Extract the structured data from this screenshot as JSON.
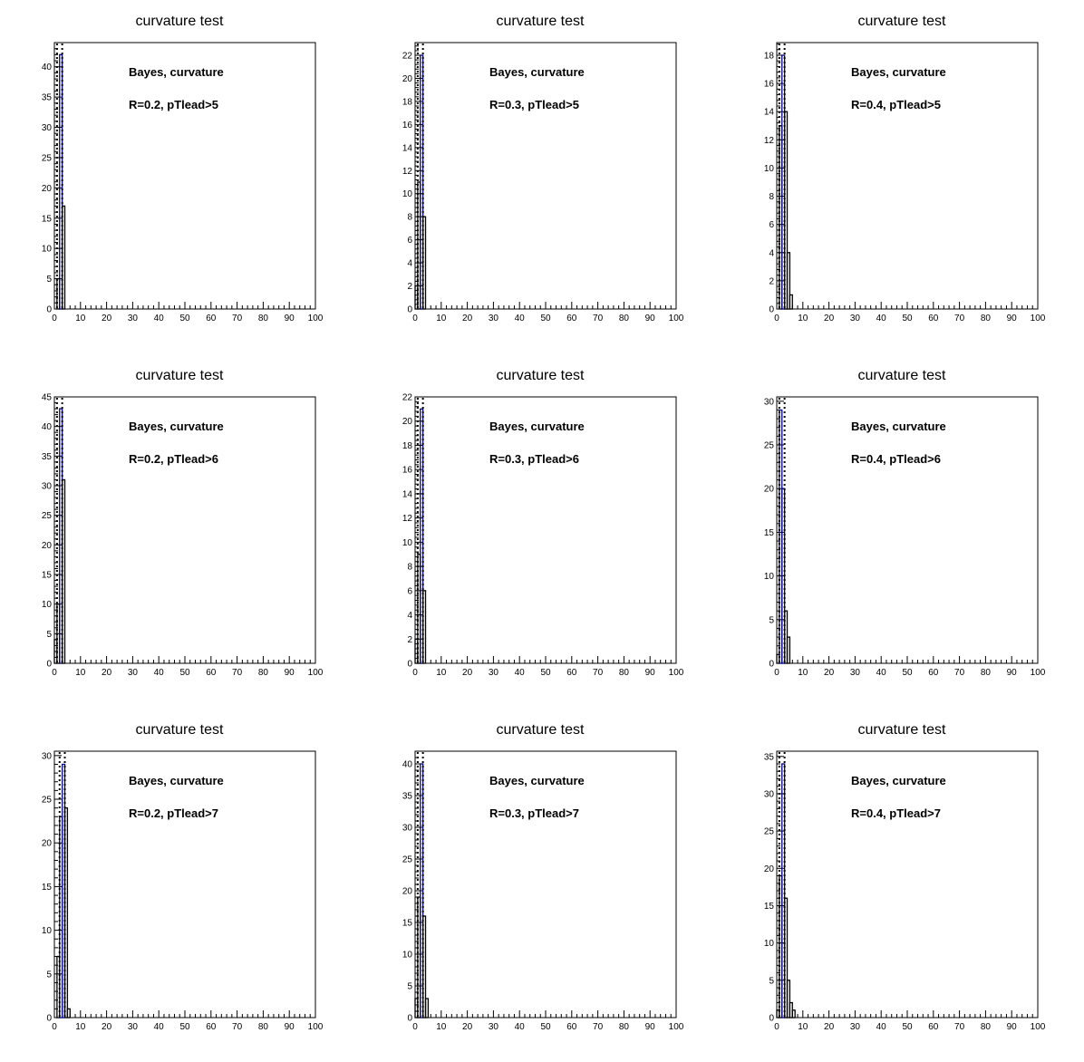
{
  "chart_data": [
    {
      "type": "bar",
      "title": "curvature test",
      "annotation_lines": [
        "Bayes, curvature",
        "R=0.2, pTlead>5"
      ],
      "xlim": [
        0,
        100
      ],
      "ylim": [
        0,
        44
      ],
      "x_ticks": [
        0,
        10,
        20,
        30,
        40,
        50,
        60,
        70,
        80,
        90,
        100
      ],
      "y_ticks": [
        0,
        5,
        10,
        15,
        20,
        25,
        30,
        35,
        40
      ],
      "bin_width": 1,
      "bin_edges": [
        0,
        1,
        2,
        3,
        4
      ],
      "values": [
        0,
        5,
        42,
        17
      ],
      "line_color": "#000080",
      "dotted_lines": [
        1,
        3
      ]
    },
    {
      "type": "bar",
      "title": "curvature test",
      "annotation_lines": [
        "Bayes, curvature",
        "R=0.3, pTlead>5"
      ],
      "xlim": [
        0,
        100
      ],
      "ylim": [
        0,
        23.1
      ],
      "x_ticks": [
        0,
        10,
        20,
        30,
        40,
        50,
        60,
        70,
        80,
        90,
        100
      ],
      "y_ticks": [
        0,
        2,
        4,
        6,
        8,
        10,
        12,
        14,
        16,
        18,
        20,
        22
      ],
      "bin_width": 1,
      "bin_edges": [
        0,
        1,
        2,
        3,
        4
      ],
      "values": [
        2,
        11,
        22,
        8
      ],
      "line_color": "#000080",
      "dotted_lines": [
        1,
        3
      ]
    },
    {
      "type": "bar",
      "title": "curvature test",
      "annotation_lines": [
        "Bayes, curvature",
        "R=0.4, pTlead>5"
      ],
      "xlim": [
        0,
        100
      ],
      "ylim": [
        0,
        18.9
      ],
      "x_ticks": [
        0,
        10,
        20,
        30,
        40,
        50,
        60,
        70,
        80,
        90,
        100
      ],
      "y_ticks": [
        0,
        2,
        4,
        6,
        8,
        10,
        12,
        14,
        16,
        18
      ],
      "bin_width": 1,
      "bin_edges": [
        0,
        1,
        2,
        3,
        4,
        5,
        6,
        7
      ],
      "values": [
        0,
        13,
        18,
        14,
        4,
        1,
        0
      ],
      "line_color": "#000080",
      "dotted_lines": [
        1,
        3
      ]
    },
    {
      "type": "bar",
      "title": "curvature test",
      "annotation_lines": [
        "Bayes, curvature",
        "R=0.2, pTlead>6"
      ],
      "xlim": [
        0,
        100
      ],
      "ylim": [
        0,
        45
      ],
      "x_ticks": [
        0,
        10,
        20,
        30,
        40,
        50,
        60,
        70,
        80,
        90,
        100
      ],
      "y_ticks": [
        0,
        5,
        10,
        15,
        20,
        25,
        30,
        35,
        40,
        45
      ],
      "bin_width": 1,
      "bin_edges": [
        0,
        1,
        2,
        3,
        4
      ],
      "values": [
        4,
        10,
        43,
        31
      ],
      "line_color": "#000080",
      "dotted_lines": [
        1,
        3
      ]
    },
    {
      "type": "bar",
      "title": "curvature test",
      "annotation_lines": [
        "Bayes, curvature",
        "R=0.3, pTlead>6"
      ],
      "xlim": [
        0,
        100
      ],
      "ylim": [
        0,
        22
      ],
      "x_ticks": [
        0,
        10,
        20,
        30,
        40,
        50,
        60,
        70,
        80,
        90,
        100
      ],
      "y_ticks": [
        0,
        2,
        4,
        6,
        8,
        10,
        12,
        14,
        16,
        18,
        20,
        22
      ],
      "bin_width": 1,
      "bin_edges": [
        0,
        1,
        2,
        3,
        4
      ],
      "values": [
        2,
        9,
        21,
        6
      ],
      "line_color": "#000080",
      "dotted_lines": [
        1,
        3
      ]
    },
    {
      "type": "bar",
      "title": "curvature test",
      "annotation_lines": [
        "Bayes, curvature",
        "R=0.4, pTlead>6"
      ],
      "xlim": [
        0,
        100
      ],
      "ylim": [
        0,
        30.5
      ],
      "x_ticks": [
        0,
        10,
        20,
        30,
        40,
        50,
        60,
        70,
        80,
        90,
        100
      ],
      "y_ticks": [
        0,
        5,
        10,
        15,
        20,
        25,
        30
      ],
      "bin_width": 1,
      "bin_edges": [
        0,
        1,
        2,
        3,
        4,
        5,
        6
      ],
      "values": [
        1,
        29,
        20,
        6,
        3,
        0
      ],
      "line_color": "#000080",
      "dotted_lines": [
        1,
        3
      ]
    },
    {
      "type": "bar",
      "title": "curvature test",
      "annotation_lines": [
        "Bayes, curvature",
        "R=0.2, pTlead>7"
      ],
      "xlim": [
        0,
        100
      ],
      "ylim": [
        0,
        30.5
      ],
      "x_ticks": [
        0,
        10,
        20,
        30,
        40,
        50,
        60,
        70,
        80,
        90,
        100
      ],
      "y_ticks": [
        0,
        5,
        10,
        15,
        20,
        25,
        30
      ],
      "bin_width": 1,
      "bin_edges": [
        0,
        1,
        2,
        3,
        4,
        5,
        6
      ],
      "values": [
        0,
        7,
        23,
        29,
        24,
        1
      ],
      "line_color": "#000080",
      "dotted_lines": [
        2,
        4
      ]
    },
    {
      "type": "bar",
      "title": "curvature test",
      "annotation_lines": [
        "Bayes, curvature",
        "R=0.3, pTlead>7"
      ],
      "xlim": [
        0,
        100
      ],
      "ylim": [
        0,
        42
      ],
      "x_ticks": [
        0,
        10,
        20,
        30,
        40,
        50,
        60,
        70,
        80,
        90,
        100
      ],
      "y_ticks": [
        0,
        5,
        10,
        15,
        20,
        25,
        30,
        35,
        40
      ],
      "bin_width": 1,
      "bin_edges": [
        0,
        1,
        2,
        3,
        4,
        5
      ],
      "values": [
        3,
        19,
        40,
        16,
        3
      ],
      "line_color": "#000080",
      "dotted_lines": [
        1,
        3
      ]
    },
    {
      "type": "bar",
      "title": "curvature test",
      "annotation_lines": [
        "Bayes, curvature",
        "R=0.4, pTlead>7"
      ],
      "xlim": [
        0,
        100
      ],
      "ylim": [
        0,
        35.7
      ],
      "x_ticks": [
        0,
        10,
        20,
        30,
        40,
        50,
        60,
        70,
        80,
        90,
        100
      ],
      "y_ticks": [
        0,
        5,
        10,
        15,
        20,
        25,
        30,
        35
      ],
      "bin_width": 1,
      "bin_edges": [
        0,
        1,
        2,
        3,
        4,
        5,
        6,
        7,
        8
      ],
      "values": [
        1,
        19,
        34,
        16,
        5,
        2,
        1,
        0
      ],
      "line_color": "#000080",
      "dotted_lines": [
        1,
        3
      ]
    }
  ]
}
